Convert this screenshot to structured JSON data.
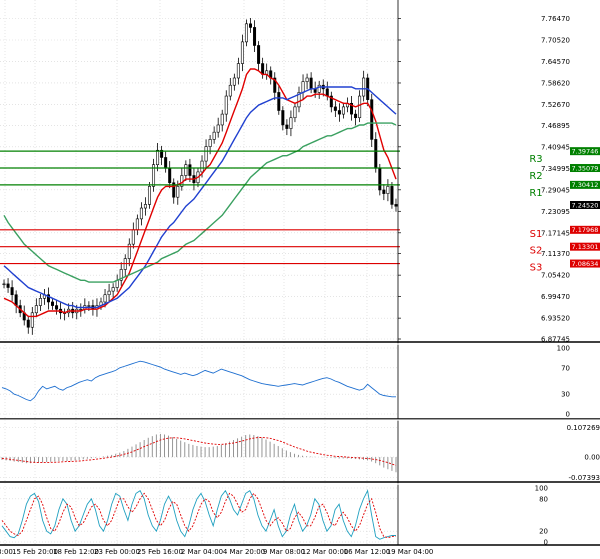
{
  "chart_data": [
    {
      "type": "candlestick",
      "panel": "price",
      "title": "",
      "x_tick_labels": [
        "3:00",
        "15 Feb 20:00",
        "18 Feb 12:00",
        "23 Feb 00:00",
        "25 Feb 16:00",
        "2 Mar 04:00",
        "4 Mar 20:00",
        "9 Mar 08:00",
        "12 Mar 00:00",
        "16 Mar 12:00",
        "19 Mar 04:00"
      ],
      "y_tick_labels": [
        "7.76470",
        "7.70520",
        "7.64570",
        "7.58620",
        "7.52670",
        "7.46895",
        "7.40945",
        "7.34995",
        "7.29045",
        "7.23095",
        "7.17145",
        "7.11370",
        "7.05420",
        "6.99470",
        "6.93520",
        "6.87745"
      ],
      "ylim": [
        6.87745,
        7.7793
      ],
      "last_price": "7.24520",
      "levels": [
        {
          "name": "R3",
          "value": 7.39746,
          "label": "7.39746",
          "color": "#008000"
        },
        {
          "name": "R2",
          "value": 7.35079,
          "label": "7.35079",
          "color": "#008000"
        },
        {
          "name": "R1",
          "value": 7.30412,
          "label": "7.30412",
          "color": "#008000"
        },
        {
          "name": "S1",
          "value": 7.17968,
          "label": "7.17968",
          "color": "#dd0000"
        },
        {
          "name": "S2",
          "value": 7.13301,
          "label": "7.13301",
          "color": "#dd0000"
        },
        {
          "name": "S3",
          "value": 7.08634,
          "label": "7.08634",
          "color": "#dd0000"
        }
      ],
      "close": [
        7.03,
        7.02,
        7.0,
        6.97,
        6.95,
        6.93,
        6.91,
        6.95,
        6.97,
        6.99,
        7.0,
        6.98,
        6.97,
        6.96,
        6.95,
        6.95,
        6.96,
        6.95,
        6.96,
        6.96,
        6.97,
        6.97,
        6.96,
        6.97,
        6.98,
        7.0,
        7.01,
        7.02,
        7.04,
        7.07,
        7.1,
        7.14,
        7.18,
        7.21,
        7.24,
        7.25,
        7.3,
        7.36,
        7.4,
        7.38,
        7.35,
        7.31,
        7.27,
        7.3,
        7.33,
        7.36,
        7.33,
        7.31,
        7.34,
        7.37,
        7.41,
        7.43,
        7.45,
        7.47,
        7.5,
        7.55,
        7.58,
        7.6,
        7.64,
        7.7,
        7.75,
        7.74,
        7.69,
        7.64,
        7.61,
        7.62,
        7.6,
        7.56,
        7.51,
        7.47,
        7.46,
        7.49,
        7.52,
        7.56,
        7.59,
        7.6,
        7.57,
        7.56,
        7.58,
        7.57,
        7.55,
        7.52,
        7.51,
        7.5,
        7.52,
        7.53,
        7.5,
        7.49,
        7.55,
        7.6,
        7.54,
        7.43,
        7.35,
        7.29,
        7.28,
        7.3,
        7.25,
        7.245
      ],
      "series": [
        {
          "name": "",
          "color": "#e00000",
          "values": [
            6.99,
            6.985,
            6.98,
            6.97,
            6.96,
            6.95,
            6.94,
            6.94,
            6.94,
            6.945,
            6.95,
            6.955,
            6.955,
            6.955,
            6.955,
            6.95,
            6.955,
            6.955,
            6.955,
            6.955,
            6.96,
            6.96,
            6.96,
            6.96,
            6.965,
            6.97,
            6.98,
            6.99,
            7.0,
            7.02,
            7.04,
            7.06,
            7.09,
            7.12,
            7.15,
            7.18,
            7.21,
            7.24,
            7.27,
            7.29,
            7.3,
            7.3,
            7.3,
            7.305,
            7.31,
            7.32,
            7.32,
            7.32,
            7.325,
            7.335,
            7.35,
            7.36,
            7.38,
            7.4,
            7.42,
            7.45,
            7.48,
            7.51,
            7.54,
            7.57,
            7.61,
            7.625,
            7.625,
            7.62,
            7.61,
            7.61,
            7.6,
            7.595,
            7.58,
            7.56,
            7.54,
            7.535,
            7.53,
            7.535,
            7.54,
            7.55,
            7.55,
            7.555,
            7.555,
            7.555,
            7.55,
            7.545,
            7.54,
            7.535,
            7.53,
            7.53,
            7.525,
            7.52,
            7.525,
            7.53,
            7.53,
            7.51,
            7.48,
            7.44,
            7.4,
            7.38,
            7.35,
            7.32
          ]
        },
        {
          "name": "",
          "color": "#2040d0",
          "values": [
            7.08,
            7.07,
            7.06,
            7.05,
            7.04,
            7.03,
            7.02,
            7.015,
            7.01,
            7.005,
            7.0,
            6.995,
            6.99,
            6.985,
            6.98,
            6.975,
            6.97,
            6.97,
            6.965,
            6.965,
            6.965,
            6.965,
            6.965,
            6.965,
            6.97,
            6.975,
            6.98,
            6.985,
            6.99,
            7.0,
            7.01,
            7.02,
            7.035,
            7.05,
            7.065,
            7.08,
            7.1,
            7.12,
            7.14,
            7.16,
            7.175,
            7.19,
            7.2,
            7.215,
            7.23,
            7.245,
            7.255,
            7.265,
            7.28,
            7.295,
            7.31,
            7.325,
            7.34,
            7.355,
            7.37,
            7.39,
            7.41,
            7.43,
            7.45,
            7.47,
            7.49,
            7.505,
            7.515,
            7.525,
            7.53,
            7.535,
            7.54,
            7.545,
            7.545,
            7.545,
            7.54,
            7.545,
            7.55,
            7.555,
            7.56,
            7.565,
            7.57,
            7.57,
            7.575,
            7.575,
            7.575,
            7.575,
            7.575,
            7.575,
            7.575,
            7.575,
            7.575,
            7.57,
            7.57,
            7.57,
            7.57,
            7.56,
            7.55,
            7.54,
            7.53,
            7.52,
            7.51,
            7.5
          ]
        },
        {
          "name": "",
          "color": "#3aa060",
          "values": [
            7.22,
            7.2,
            7.185,
            7.17,
            7.155,
            7.14,
            7.13,
            7.12,
            7.11,
            7.1,
            7.09,
            7.08,
            7.075,
            7.07,
            7.065,
            7.06,
            7.055,
            7.05,
            7.045,
            7.04,
            7.04,
            7.035,
            7.035,
            7.035,
            7.035,
            7.035,
            7.035,
            7.035,
            7.04,
            7.045,
            7.05,
            7.055,
            7.06,
            7.065,
            7.07,
            7.075,
            7.08,
            7.085,
            7.09,
            7.1,
            7.105,
            7.11,
            7.115,
            7.12,
            7.13,
            7.14,
            7.145,
            7.15,
            7.16,
            7.17,
            7.18,
            7.19,
            7.2,
            7.21,
            7.22,
            7.235,
            7.25,
            7.265,
            7.28,
            7.295,
            7.31,
            7.325,
            7.335,
            7.345,
            7.355,
            7.365,
            7.37,
            7.375,
            7.38,
            7.385,
            7.385,
            7.39,
            7.395,
            7.4,
            7.41,
            7.415,
            7.42,
            7.425,
            7.43,
            7.435,
            7.44,
            7.44,
            7.445,
            7.45,
            7.455,
            7.46,
            7.46,
            7.465,
            7.47,
            7.47,
            7.475,
            7.475,
            7.475,
            7.475,
            7.475,
            7.475,
            7.475,
            7.47
          ]
        }
      ]
    },
    {
      "type": "line",
      "panel": "oscillator",
      "y_tick_labels": [
        "100",
        "70",
        "30",
        "0"
      ],
      "ylim": [
        0,
        100
      ],
      "series": [
        {
          "name": "",
          "color": "#1e6fd0",
          "values": [
            40,
            38,
            35,
            30,
            28,
            25,
            22,
            20,
            25,
            35,
            42,
            38,
            40,
            42,
            38,
            36,
            40,
            42,
            45,
            48,
            50,
            52,
            50,
            55,
            58,
            60,
            62,
            64,
            66,
            70,
            72,
            74,
            76,
            78,
            80,
            79,
            77,
            75,
            73,
            71,
            68,
            66,
            64,
            62,
            60,
            62,
            60,
            58,
            60,
            63,
            66,
            64,
            62,
            65,
            68,
            66,
            64,
            62,
            60,
            58,
            55,
            52,
            50,
            48,
            46,
            45,
            44,
            43,
            42,
            43,
            44,
            45,
            46,
            45,
            44,
            46,
            48,
            50,
            52,
            54,
            55,
            53,
            50,
            48,
            45,
            42,
            40,
            38,
            36,
            38,
            45,
            40,
            35,
            30,
            28,
            27,
            26,
            26
          ]
        }
      ]
    },
    {
      "type": "bar",
      "panel": "macd",
      "y_tick_labels": [
        "0.107269",
        "0.00",
        "-0.07393"
      ],
      "ylim": [
        -0.07393,
        0.107269
      ],
      "values": [
        -0.01,
        -0.012,
        -0.014,
        -0.016,
        -0.018,
        -0.02,
        -0.022,
        -0.022,
        -0.021,
        -0.02,
        -0.019,
        -0.018,
        -0.017,
        -0.016,
        -0.015,
        -0.014,
        -0.014,
        -0.013,
        -0.012,
        -0.01,
        -0.008,
        -0.006,
        -0.004,
        -0.002,
        0.0,
        0.002,
        0.005,
        0.008,
        0.012,
        0.016,
        0.022,
        0.03,
        0.038,
        0.046,
        0.054,
        0.062,
        0.07,
        0.076,
        0.082,
        0.084,
        0.082,
        0.078,
        0.072,
        0.066,
        0.06,
        0.054,
        0.048,
        0.044,
        0.04,
        0.038,
        0.036,
        0.036,
        0.038,
        0.04,
        0.044,
        0.05,
        0.056,
        0.062,
        0.068,
        0.074,
        0.08,
        0.082,
        0.08,
        0.076,
        0.07,
        0.064,
        0.056,
        0.048,
        0.04,
        0.032,
        0.024,
        0.018,
        0.012,
        0.008,
        0.005,
        0.003,
        0.002,
        0.001,
        0.0,
        -0.001,
        -0.002,
        -0.003,
        -0.004,
        -0.005,
        -0.005,
        -0.005,
        -0.006,
        -0.007,
        -0.008,
        -0.01,
        -0.012,
        -0.016,
        -0.022,
        -0.03,
        -0.038,
        -0.044,
        -0.05,
        -0.055
      ],
      "signal": [
        -0.005,
        -0.006,
        -0.008,
        -0.01,
        -0.012,
        -0.014,
        -0.016,
        -0.018,
        -0.019,
        -0.02,
        -0.02,
        -0.02,
        -0.019,
        -0.019,
        -0.018,
        -0.017,
        -0.016,
        -0.016,
        -0.015,
        -0.014,
        -0.013,
        -0.011,
        -0.01,
        -0.008,
        -0.006,
        -0.004,
        -0.002,
        0.0,
        0.003,
        0.006,
        0.01,
        0.014,
        0.019,
        0.025,
        0.031,
        0.038,
        0.044,
        0.05,
        0.056,
        0.062,
        0.066,
        0.069,
        0.07,
        0.07,
        0.068,
        0.066,
        0.063,
        0.06,
        0.057,
        0.054,
        0.051,
        0.049,
        0.047,
        0.046,
        0.046,
        0.047,
        0.049,
        0.051,
        0.054,
        0.058,
        0.062,
        0.066,
        0.069,
        0.071,
        0.071,
        0.07,
        0.068,
        0.064,
        0.06,
        0.055,
        0.049,
        0.043,
        0.037,
        0.032,
        0.027,
        0.022,
        0.018,
        0.015,
        0.012,
        0.009,
        0.007,
        0.005,
        0.003,
        0.002,
        0.001,
        0.0,
        -0.001,
        -0.002,
        -0.003,
        -0.004,
        -0.005,
        -0.007,
        -0.009,
        -0.012,
        -0.016,
        -0.02,
        -0.025,
        -0.03
      ],
      "signal_color": "#e00000"
    },
    {
      "type": "line",
      "panel": "stochastic",
      "y_tick_labels": [
        "100",
        "80",
        "20",
        "0"
      ],
      "ylim": [
        0,
        100
      ],
      "series": [
        {
          "name": "",
          "color": "#20a0c0",
          "values": [
            30,
            20,
            10,
            8,
            15,
            40,
            70,
            85,
            90,
            75,
            40,
            20,
            15,
            30,
            60,
            80,
            70,
            40,
            20,
            30,
            50,
            70,
            80,
            60,
            30,
            20,
            40,
            70,
            90,
            85,
            60,
            40,
            70,
            90,
            95,
            80,
            50,
            30,
            20,
            40,
            70,
            85,
            70,
            40,
            20,
            10,
            30,
            60,
            80,
            90,
            75,
            50,
            30,
            60,
            85,
            95,
            80,
            60,
            50,
            70,
            90,
            95,
            80,
            50,
            30,
            20,
            40,
            60,
            30,
            10,
            20,
            50,
            70,
            40,
            20,
            30,
            50,
            80,
            70,
            40,
            20,
            30,
            60,
            70,
            40,
            20,
            10,
            30,
            60,
            80,
            95,
            50,
            10,
            5,
            8,
            10,
            12,
            12
          ]
        },
        {
          "name": "",
          "color": "#e00000",
          "values": [
            40,
            30,
            20,
            15,
            12,
            20,
            40,
            60,
            80,
            85,
            70,
            45,
            25,
            20,
            35,
            55,
            70,
            65,
            45,
            30,
            35,
            50,
            65,
            70,
            60,
            40,
            30,
            40,
            60,
            80,
            80,
            65,
            55,
            65,
            80,
            90,
            80,
            60,
            40,
            30,
            40,
            60,
            75,
            70,
            50,
            30,
            20,
            30,
            50,
            70,
            80,
            75,
            55,
            45,
            55,
            75,
            90,
            85,
            70,
            55,
            60,
            80,
            90,
            80,
            60,
            40,
            30,
            40,
            45,
            35,
            20,
            25,
            45,
            55,
            45,
            30,
            30,
            45,
            65,
            70,
            55,
            35,
            30,
            45,
            55,
            45,
            30,
            20,
            30,
            50,
            70,
            80,
            55,
            25,
            10,
            8,
            10,
            11
          ]
        }
      ]
    }
  ]
}
